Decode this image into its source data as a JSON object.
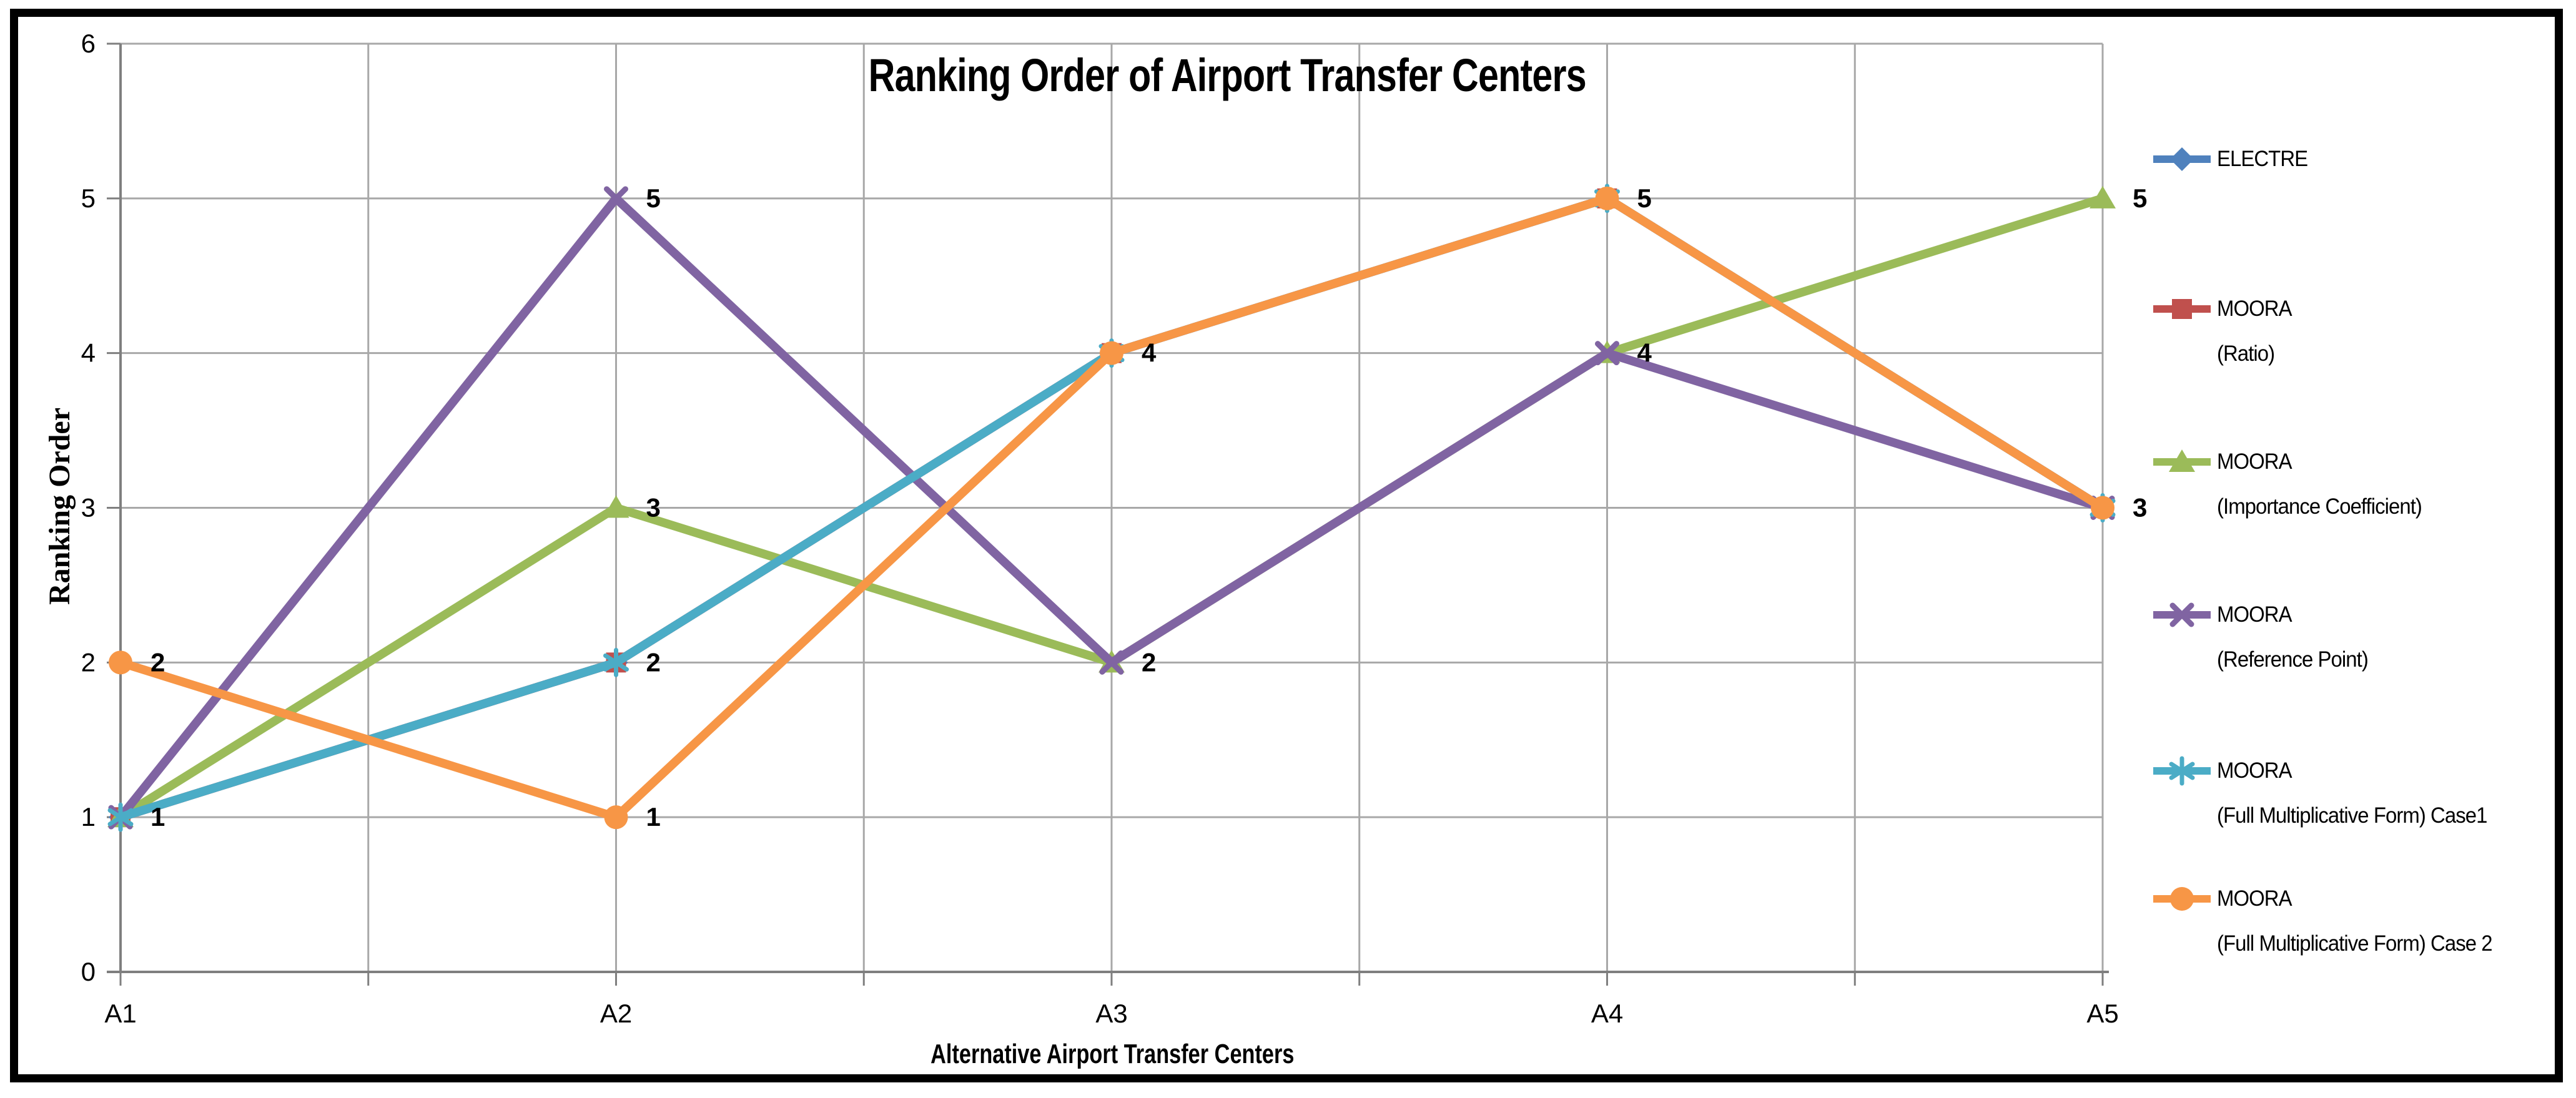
{
  "chart_data": {
    "type": "line",
    "title": "Ranking Order of Airport Transfer Centers",
    "xlabel": "Alternative Airport Transfer Centers",
    "ylabel": "Ranking Order",
    "categories": [
      "A1",
      "A2",
      "A3",
      "A4",
      "A5"
    ],
    "yticks": [
      0,
      1,
      2,
      3,
      4,
      5,
      6
    ],
    "ylim": [
      0,
      6
    ],
    "grid": true,
    "legend_position": "right",
    "colors": {
      "gridline": "#A8A8A8",
      "axis": "#7F7F7F",
      "text": "#000000",
      "border": "#000000",
      "background": "#FFFFFF"
    },
    "series": [
      {
        "name": "ELECTRE",
        "label_lines": [
          "ELECTRE"
        ],
        "color": "#4F81BD",
        "marker": "diamond",
        "values": [
          1,
          2,
          4,
          5,
          3
        ]
      },
      {
        "name": "MOORA (Ratio)",
        "label_lines": [
          "MOORA",
          "(Ratio)"
        ],
        "color": "#C0504D",
        "marker": "square",
        "values": [
          1,
          2,
          4,
          5,
          3
        ]
      },
      {
        "name": "MOORA (Importance Coefficient)",
        "label_lines": [
          "MOORA",
          "(Importance Coefficient)"
        ],
        "color": "#9BBB59",
        "marker": "triangle",
        "values": [
          1,
          3,
          2,
          4,
          5
        ]
      },
      {
        "name": "MOORA (Reference Point)",
        "label_lines": [
          "MOORA",
          "(Reference Point)"
        ],
        "color": "#8064A2",
        "marker": "x",
        "values": [
          1,
          5,
          2,
          4,
          3
        ]
      },
      {
        "name": "MOORA (Full Multiplicative Form) Case1",
        "label_lines": [
          "MOORA",
          "(Full Multiplicative Form) Case1"
        ],
        "color": "#4BACC6",
        "marker": "asterisk",
        "values": [
          1,
          2,
          4,
          5,
          3
        ]
      },
      {
        "name": "MOORA (Full Multiplicative Form) Case 2",
        "label_lines": [
          "MOORA",
          "(Full Multiplicative Form) Case 2"
        ],
        "color": "#F79646",
        "marker": "circle",
        "values": [
          2,
          1,
          4,
          5,
          3
        ]
      }
    ],
    "point_labels": [
      {
        "category": "A1",
        "value": 1
      },
      {
        "category": "A1",
        "value": 2
      },
      {
        "category": "A2",
        "value": 5
      },
      {
        "category": "A2",
        "value": 3
      },
      {
        "category": "A2",
        "value": 2
      },
      {
        "category": "A2",
        "value": 1
      },
      {
        "category": "A3",
        "value": 4
      },
      {
        "category": "A3",
        "value": 2
      },
      {
        "category": "A4",
        "value": 5
      },
      {
        "category": "A4",
        "value": 4
      },
      {
        "category": "A5",
        "value": 5
      },
      {
        "category": "A5",
        "value": 3
      }
    ]
  }
}
